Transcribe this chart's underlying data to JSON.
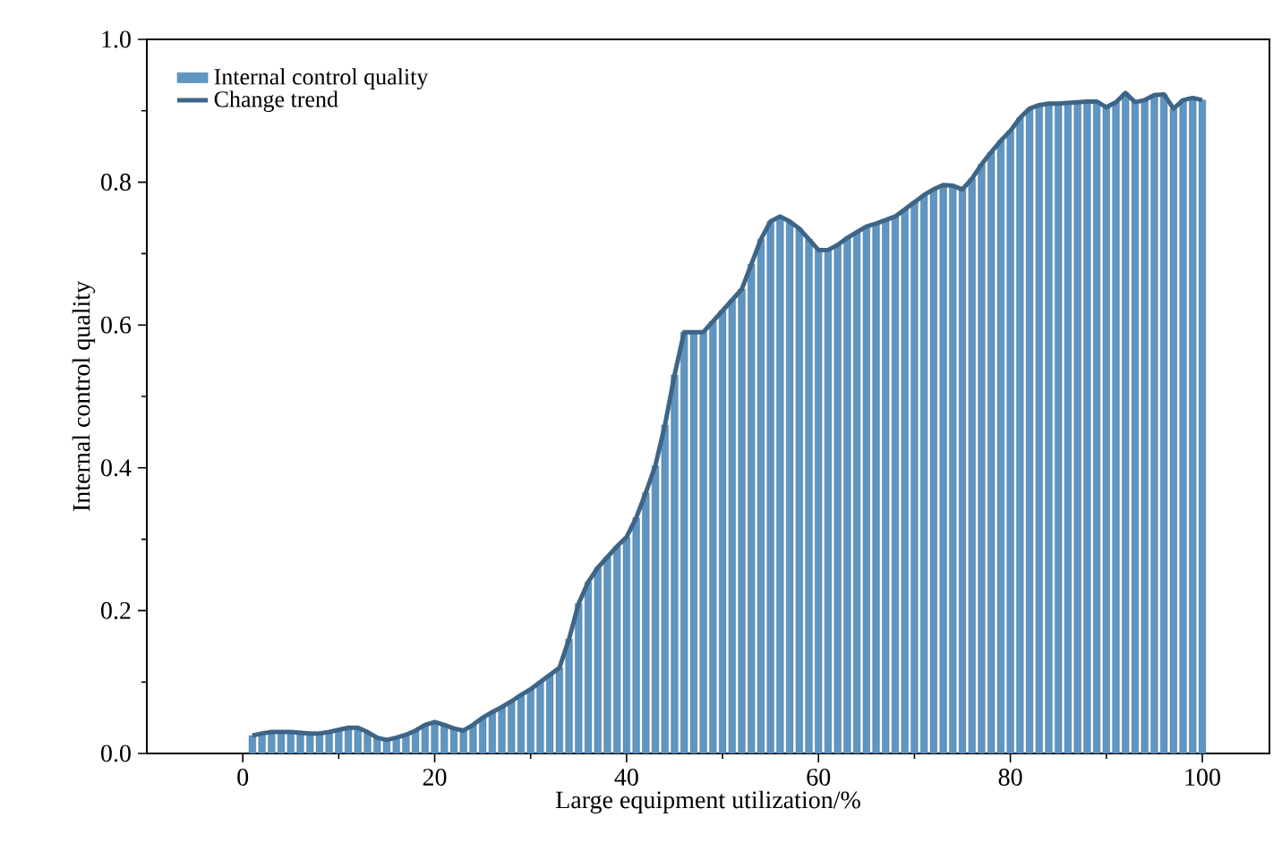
{
  "chart_data": {
    "type": "bar",
    "xlabel": "Large equipment utilization/%",
    "ylabel": "Internal control quality",
    "x": [
      1,
      2,
      3,
      4,
      5,
      6,
      7,
      8,
      9,
      10,
      11,
      12,
      13,
      14,
      15,
      16,
      17,
      18,
      19,
      20,
      21,
      22,
      23,
      24,
      25,
      26,
      27,
      28,
      29,
      30,
      31,
      32,
      33,
      34,
      35,
      36,
      37,
      38,
      39,
      40,
      41,
      42,
      43,
      44,
      45,
      46,
      47,
      48,
      49,
      50,
      51,
      52,
      53,
      54,
      55,
      56,
      57,
      58,
      59,
      60,
      61,
      62,
      63,
      64,
      65,
      66,
      67,
      68,
      69,
      70,
      71,
      72,
      73,
      74,
      75,
      76,
      77,
      78,
      79,
      80,
      81,
      82,
      83,
      84,
      85,
      86,
      87,
      88,
      89,
      90,
      91,
      92,
      93,
      94,
      95,
      96,
      97,
      98,
      99,
      100
    ],
    "series": [
      {
        "name": "Internal control quality",
        "color": "#5f95c2",
        "values": [
          0.025,
          0.028,
          0.03,
          0.03,
          0.03,
          0.029,
          0.028,
          0.028,
          0.03,
          0.033,
          0.036,
          0.036,
          0.03,
          0.022,
          0.019,
          0.022,
          0.026,
          0.032,
          0.04,
          0.044,
          0.04,
          0.035,
          0.032,
          0.04,
          0.05,
          0.058,
          0.065,
          0.073,
          0.082,
          0.09,
          0.1,
          0.11,
          0.12,
          0.16,
          0.21,
          0.24,
          0.26,
          0.275,
          0.29,
          0.303,
          0.33,
          0.365,
          0.403,
          0.46,
          0.53,
          0.59,
          0.59,
          0.59,
          0.605,
          0.62,
          0.635,
          0.65,
          0.685,
          0.72,
          0.745,
          0.752,
          0.745,
          0.735,
          0.72,
          0.705,
          0.705,
          0.712,
          0.722,
          0.73,
          0.738,
          0.742,
          0.747,
          0.752,
          0.762,
          0.772,
          0.782,
          0.79,
          0.796,
          0.795,
          0.79,
          0.805,
          0.825,
          0.842,
          0.858,
          0.872,
          0.89,
          0.903,
          0.908,
          0.91,
          0.91,
          0.911,
          0.912,
          0.913,
          0.913,
          0.905,
          0.912,
          0.925,
          0.912,
          0.915,
          0.922,
          0.923,
          0.903,
          0.915,
          0.918,
          0.915
        ]
      },
      {
        "name": "Change trend",
        "type": "line",
        "color": "#3d6587",
        "values": [
          0.025,
          0.028,
          0.03,
          0.03,
          0.03,
          0.029,
          0.028,
          0.028,
          0.03,
          0.033,
          0.036,
          0.036,
          0.03,
          0.022,
          0.019,
          0.022,
          0.026,
          0.032,
          0.04,
          0.044,
          0.04,
          0.035,
          0.032,
          0.04,
          0.05,
          0.058,
          0.065,
          0.073,
          0.082,
          0.09,
          0.1,
          0.11,
          0.12,
          0.16,
          0.21,
          0.24,
          0.26,
          0.275,
          0.29,
          0.303,
          0.33,
          0.365,
          0.403,
          0.46,
          0.53,
          0.59,
          0.59,
          0.59,
          0.605,
          0.62,
          0.635,
          0.65,
          0.685,
          0.72,
          0.745,
          0.752,
          0.745,
          0.735,
          0.72,
          0.705,
          0.705,
          0.712,
          0.722,
          0.73,
          0.738,
          0.742,
          0.747,
          0.752,
          0.762,
          0.772,
          0.782,
          0.79,
          0.796,
          0.795,
          0.79,
          0.805,
          0.825,
          0.842,
          0.858,
          0.872,
          0.89,
          0.903,
          0.908,
          0.91,
          0.91,
          0.911,
          0.912,
          0.913,
          0.913,
          0.905,
          0.912,
          0.925,
          0.912,
          0.915,
          0.922,
          0.923,
          0.903,
          0.915,
          0.918,
          0.915
        ]
      }
    ],
    "xlim": [
      -10,
      107
    ],
    "ylim": [
      0,
      1.0
    ],
    "xticks": [
      0,
      20,
      40,
      60,
      80,
      100
    ],
    "yticks": [
      {
        "value": 0,
        "label": "0.0"
      },
      {
        "value": 0.2,
        "label": "0.2"
      },
      {
        "value": 0.4,
        "label": "0.4"
      },
      {
        "value": 0.6,
        "label": "0.6"
      },
      {
        "value": 0.8,
        "label": "0.8"
      },
      {
        "value": 1.0,
        "label": "1.0"
      }
    ],
    "legend": "top left",
    "grid": false
  }
}
